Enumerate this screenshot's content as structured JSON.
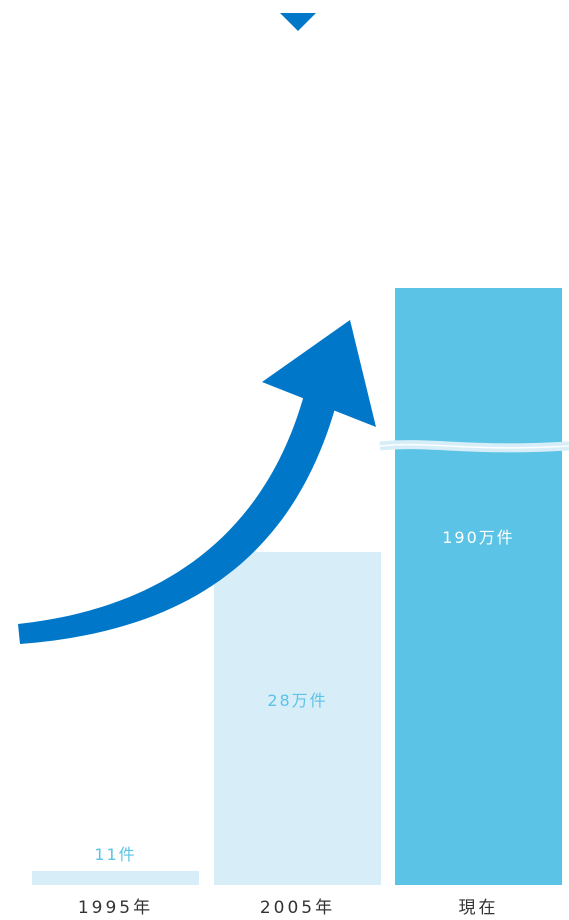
{
  "chart_data": {
    "type": "bar",
    "categories": [
      "1995年",
      "2005年",
      "現在"
    ],
    "values": [
      11,
      280000,
      1900000
    ],
    "data_labels": [
      "11件",
      "28万件",
      "190万件"
    ],
    "axis_break": true,
    "colors": {
      "accent": "#0077C8",
      "bar_light": "#D7EEF8",
      "bar_strong": "#5BC3E5",
      "label_light": "#5BC3E5",
      "label_on_strong": "#ffffff",
      "break_line": "#D7EEF8"
    },
    "decorations": {
      "top_marker": "down-triangle-icon",
      "growth_arrow": "curved-arrow-icon"
    }
  }
}
